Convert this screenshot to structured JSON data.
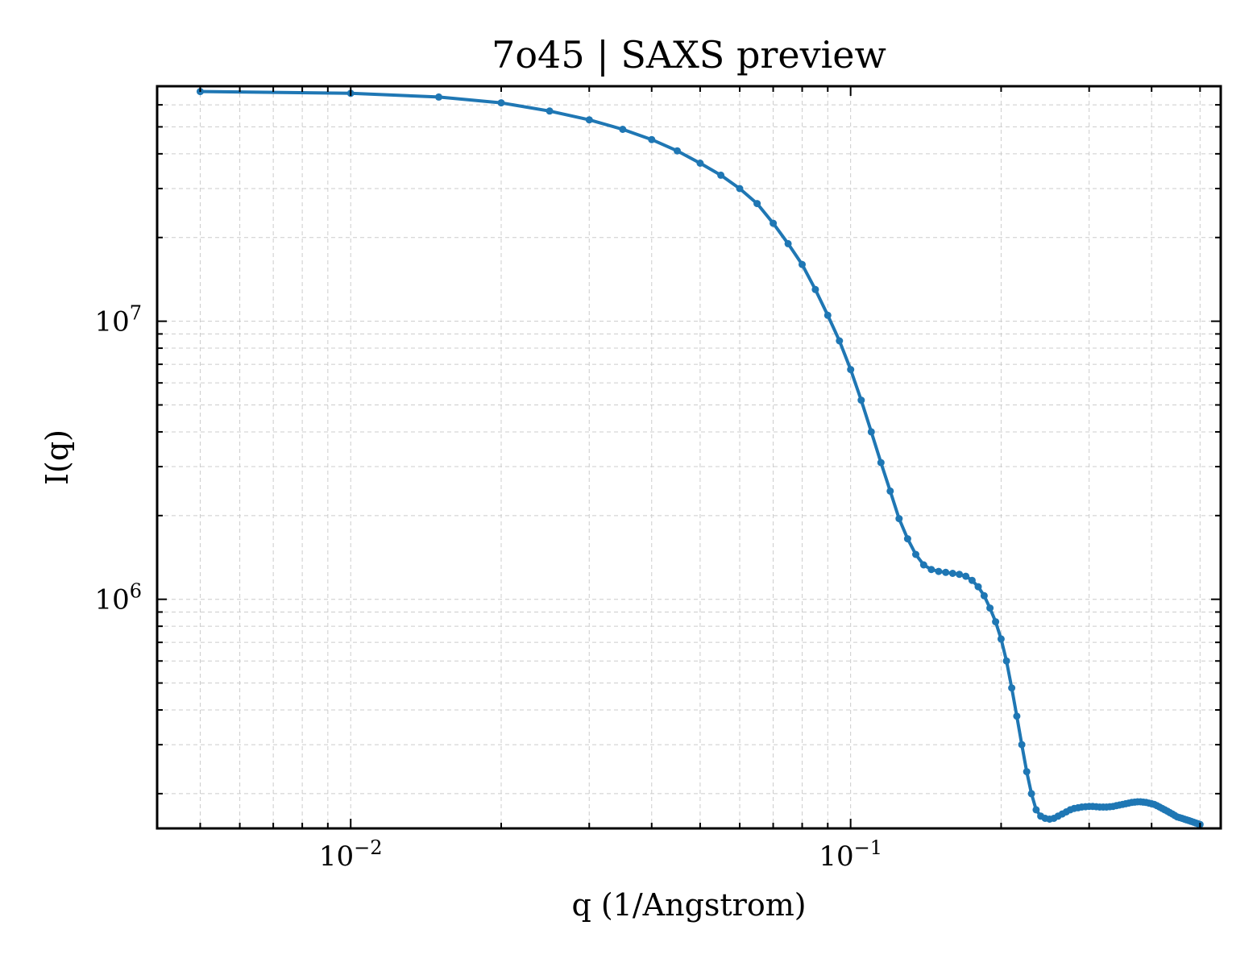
{
  "chart_data": {
    "type": "line",
    "title": "7o45 | SAXS preview",
    "xlabel": "q (1/Angstrom)",
    "ylabel": "I(q)",
    "xscale": "log",
    "yscale": "log",
    "xlim": [
      0.0041,
      0.55
    ],
    "ylim": [
      150000,
      70000000
    ],
    "x_ticks": [
      {
        "value": 0.01,
        "base": "10",
        "exp": "−2"
      },
      {
        "value": 0.1,
        "base": "10",
        "exp": "−1"
      }
    ],
    "y_ticks": [
      {
        "value": 1000000,
        "base": "10",
        "exp": "6"
      },
      {
        "value": 10000000,
        "base": "10",
        "exp": "7"
      }
    ],
    "grid": true,
    "line_color": "#1f77b4",
    "series": [
      {
        "x": [
          0.005,
          0.01,
          0.015,
          0.02,
          0.025,
          0.03,
          0.035,
          0.04,
          0.045,
          0.05,
          0.055,
          0.06,
          0.065,
          0.07,
          0.075,
          0.08,
          0.085,
          0.09,
          0.095,
          0.1,
          0.105,
          0.11,
          0.115,
          0.12,
          0.125,
          0.13,
          0.135,
          0.14,
          0.145,
          0.15,
          0.155,
          0.16,
          0.165,
          0.17,
          0.175,
          0.18,
          0.185,
          0.19,
          0.195,
          0.2,
          0.205,
          0.21,
          0.215,
          0.22,
          0.225,
          0.23,
          0.235,
          0.24,
          0.245,
          0.25,
          0.255,
          0.26,
          0.265,
          0.27,
          0.275,
          0.28,
          0.285,
          0.29,
          0.295,
          0.3,
          0.305,
          0.31,
          0.315,
          0.32,
          0.325,
          0.33,
          0.335,
          0.34,
          0.345,
          0.35,
          0.355,
          0.36,
          0.365,
          0.37,
          0.375,
          0.38,
          0.385,
          0.39,
          0.395,
          0.4,
          0.405,
          0.41,
          0.415,
          0.42,
          0.425,
          0.43,
          0.435,
          0.44,
          0.445,
          0.45,
          0.455,
          0.46,
          0.465,
          0.47,
          0.475,
          0.48,
          0.485,
          0.49,
          0.495,
          0.5
        ],
        "y": [
          67000000,
          66000000,
          64000000,
          61000000,
          57000000,
          53000000,
          49000000,
          45000000,
          41000000,
          37000000,
          33500000,
          30000000,
          26500000,
          22500000,
          19000000,
          16000000,
          13000000,
          10500000,
          8500000,
          6700000,
          5200000,
          4000000,
          3100000,
          2450000,
          1950000,
          1650000,
          1450000,
          1330000,
          1280000,
          1260000,
          1250000,
          1240000,
          1230000,
          1210000,
          1170000,
          1110000,
          1030000,
          930000,
          830000,
          720000,
          600000,
          480000,
          380000,
          300000,
          240000,
          200000,
          175000,
          166000,
          163000,
          162000,
          163000,
          166000,
          169000,
          172000,
          175000,
          177000,
          178000,
          179000,
          179500,
          180000,
          180000,
          179500,
          179000,
          179000,
          179000,
          179500,
          180000,
          181000,
          182000,
          183000,
          184000,
          185000,
          186000,
          186500,
          187000,
          187000,
          186500,
          186000,
          185000,
          184000,
          183000,
          181000,
          179000,
          177000,
          175000,
          173000,
          171000,
          169000,
          167000,
          165000,
          164000,
          163000,
          162000,
          161000,
          160000,
          159000,
          158000,
          157000,
          156000,
          155000
        ]
      }
    ]
  }
}
